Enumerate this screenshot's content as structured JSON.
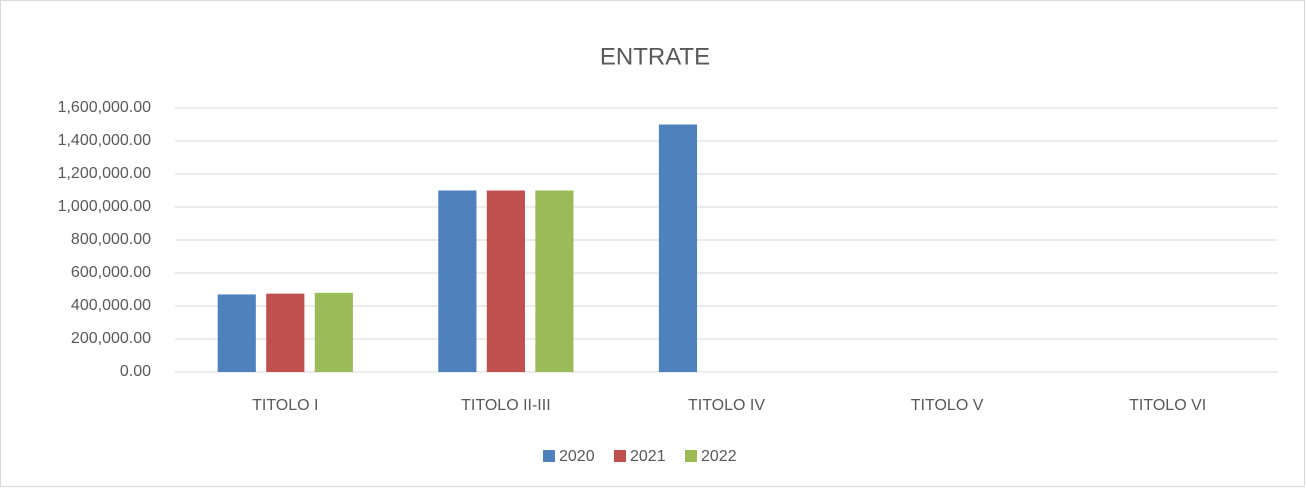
{
  "chart_data": {
    "type": "bar",
    "title": "ENTRATE",
    "categories": [
      "TITOLO I",
      "TITOLO II-III",
      "TITOLO IV",
      "TITOLO V",
      "TITOLO VI"
    ],
    "series": [
      {
        "name": "2020",
        "color": "#4f81bd",
        "values": [
          470000,
          1100000,
          1500000,
          0,
          0
        ]
      },
      {
        "name": "2021",
        "color": "#c0504d",
        "values": [
          475000,
          1100000,
          0,
          0,
          0
        ]
      },
      {
        "name": "2022",
        "color": "#9bbb59",
        "values": [
          480000,
          1100000,
          0,
          0,
          0
        ]
      }
    ],
    "ylim": [
      0,
      1600000
    ],
    "yticks": [
      {
        "value": 0,
        "label": "0.00"
      },
      {
        "value": 200000,
        "label": "200,000.00"
      },
      {
        "value": 400000,
        "label": "400,000.00"
      },
      {
        "value": 600000,
        "label": "600,000.00"
      },
      {
        "value": 800000,
        "label": "800,000.00"
      },
      {
        "value": 1000000,
        "label": "1,000,000.00"
      },
      {
        "value": 1200000,
        "label": "1,200,000.00"
      },
      {
        "value": 1400000,
        "label": "1,400,000.00"
      },
      {
        "value": 1600000,
        "label": "1,600,000.00"
      }
    ],
    "grid": true,
    "legend": "bottom"
  }
}
